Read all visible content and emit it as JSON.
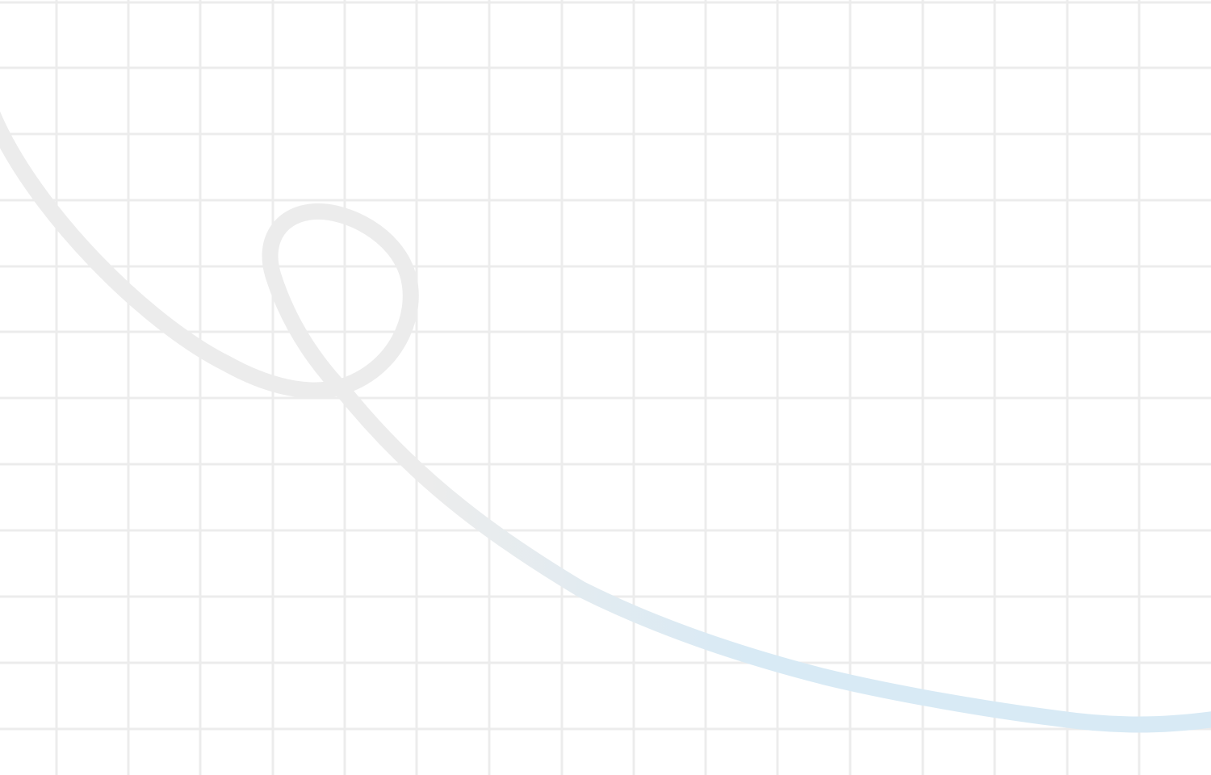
{
  "background": {
    "color": "#ffffff",
    "grid": {
      "line_color": "#ececec",
      "visible": true
    }
  },
  "decoration": {
    "curve": {
      "gradient_start_color": "#ececec",
      "gradient_end_color": "#d8eaf5"
    }
  }
}
